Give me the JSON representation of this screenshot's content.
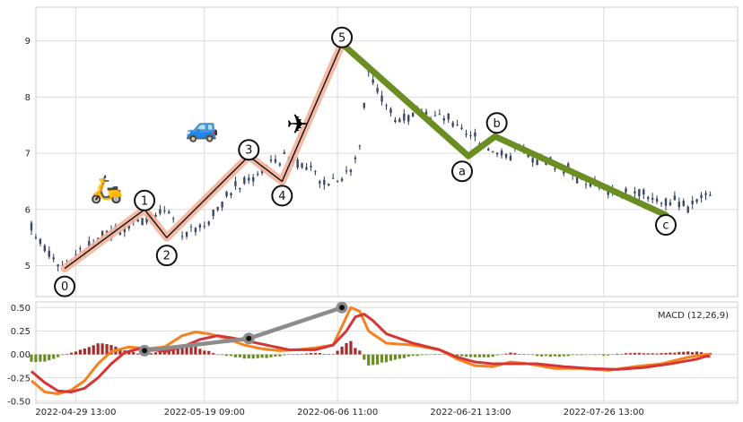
{
  "chart_data": [
    {
      "type": "candlestick",
      "title": "",
      "xlabel": "",
      "ylabel": "",
      "ylim": [
        4.45,
        9.6
      ],
      "yticks": [
        "5",
        "6",
        "7",
        "8",
        "9"
      ],
      "grid": true,
      "x_tick_labels": [
        "2022-04-29 13:00",
        "2022-05-19 09:00",
        "2022-06-06 11:00",
        "2022-06-21 13:00",
        "2022-07-26 13:00"
      ],
      "price_anchors": [
        [
          0,
          5.65
        ],
        [
          3,
          5.35
        ],
        [
          7,
          5.0
        ],
        [
          12,
          5.3
        ],
        [
          18,
          5.6
        ],
        [
          26,
          5.85
        ],
        [
          30,
          5.95
        ],
        [
          34,
          5.6
        ],
        [
          38,
          5.7
        ],
        [
          42,
          6.0
        ],
        [
          46,
          6.4
        ],
        [
          50,
          6.6
        ],
        [
          54,
          6.85
        ],
        [
          58,
          6.95
        ],
        [
          62,
          6.7
        ],
        [
          66,
          6.5
        ],
        [
          69,
          6.6
        ],
        [
          72,
          6.7
        ],
        [
          74,
          7.2
        ],
        [
          76,
          8.5
        ],
        [
          78,
          8.1
        ],
        [
          82,
          7.6
        ],
        [
          88,
          7.7
        ],
        [
          94,
          7.6
        ],
        [
          98,
          7.35
        ],
        [
          102,
          7.2
        ],
        [
          106,
          6.95
        ],
        [
          110,
          7.05
        ],
        [
          114,
          6.9
        ],
        [
          120,
          6.75
        ],
        [
          126,
          6.45
        ],
        [
          132,
          6.3
        ],
        [
          138,
          6.25
        ],
        [
          144,
          6.15
        ],
        [
          148,
          6.05
        ],
        [
          150,
          6.2
        ],
        [
          152,
          6.3
        ]
      ],
      "waves": [
        {
          "label": "0",
          "x": 7.5,
          "y": 4.95,
          "marker_dx": 0,
          "marker_dy": 20
        },
        {
          "label": "1",
          "x": 25.5,
          "y": 6.0,
          "marker_dx": 0,
          "marker_dy": -10
        },
        {
          "label": "2",
          "x": 30.5,
          "y": 5.5,
          "marker_dx": 0,
          "marker_dy": 20
        },
        {
          "label": "3",
          "x": 49,
          "y": 6.95,
          "marker_dx": 0,
          "marker_dy": -7
        },
        {
          "label": "4",
          "x": 56.5,
          "y": 6.5,
          "marker_dx": 0,
          "marker_dy": 16
        },
        {
          "label": "5",
          "x": 70,
          "y": 8.95,
          "marker_dx": 0,
          "marker_dy": -7
        },
        {
          "label": "a",
          "x": 98.5,
          "y": 6.95,
          "marker_dx": -7,
          "marker_dy": 17
        },
        {
          "label": "b",
          "x": 104.5,
          "y": 7.3,
          "marker_dx": 2,
          "marker_dy": -15
        },
        {
          "label": "c",
          "x": 143,
          "y": 5.9,
          "marker_dx": 0,
          "marker_dy": 11
        }
      ],
      "emoji_markers": [
        {
          "symbol": "🛵",
          "x": 17,
          "y": 6.2
        },
        {
          "symbol": "🚙",
          "x": 38.5,
          "y": 7.3
        },
        {
          "symbol": "✈",
          "x": 60,
          "y": 7.35
        }
      ]
    },
    {
      "type": "bar+line",
      "title": "",
      "legend_text": "MACD (12,26,9)",
      "ylim": [
        -0.52,
        0.56
      ],
      "yticks": [
        "0.50",
        "0.25",
        "0.00",
        "-0.25",
        "-0.50"
      ],
      "grid": true,
      "series": [
        {
          "name": "",
          "color": "#f5821f",
          "anchors": [
            [
              0,
              -0.28
            ],
            [
              3,
              -0.4
            ],
            [
              6,
              -0.42
            ],
            [
              9,
              -0.38
            ],
            [
              12,
              -0.28
            ],
            [
              15,
              -0.1
            ],
            [
              18,
              0.03
            ],
            [
              22,
              0.08
            ],
            [
              26,
              0.06
            ],
            [
              30,
              0.08
            ],
            [
              34,
              0.2
            ],
            [
              37,
              0.24
            ],
            [
              40,
              0.22
            ],
            [
              44,
              0.17
            ],
            [
              48,
              0.1
            ],
            [
              52,
              0.06
            ],
            [
              56,
              0.04
            ],
            [
              60,
              0.05
            ],
            [
              64,
              0.07
            ],
            [
              68,
              0.1
            ],
            [
              70,
              0.3
            ],
            [
              72,
              0.5
            ],
            [
              74,
              0.46
            ],
            [
              76,
              0.25
            ],
            [
              80,
              0.12
            ],
            [
              86,
              0.1
            ],
            [
              92,
              0.05
            ],
            [
              96,
              -0.05
            ],
            [
              100,
              -0.12
            ],
            [
              104,
              -0.13
            ],
            [
              108,
              -0.08
            ],
            [
              112,
              -0.1
            ],
            [
              118,
              -0.15
            ],
            [
              124,
              -0.15
            ],
            [
              130,
              -0.17
            ],
            [
              136,
              -0.13
            ],
            [
              142,
              -0.1
            ],
            [
              148,
              -0.03
            ],
            [
              152,
              0.0
            ]
          ]
        },
        {
          "name": "",
          "color": "#d63535",
          "anchors": [
            [
              0,
              -0.18
            ],
            [
              3,
              -0.3
            ],
            [
              6,
              -0.39
            ],
            [
              9,
              -0.4
            ],
            [
              12,
              -0.36
            ],
            [
              15,
              -0.25
            ],
            [
              18,
              -0.1
            ],
            [
              21,
              0.02
            ],
            [
              25,
              0.07
            ],
            [
              30,
              0.03
            ],
            [
              34,
              0.08
            ],
            [
              38,
              0.16
            ],
            [
              42,
              0.2
            ],
            [
              46,
              0.17
            ],
            [
              50,
              0.13
            ],
            [
              54,
              0.09
            ],
            [
              58,
              0.05
            ],
            [
              64,
              0.05
            ],
            [
              68,
              0.1
            ],
            [
              71,
              0.25
            ],
            [
              73,
              0.4
            ],
            [
              75,
              0.43
            ],
            [
              77,
              0.36
            ],
            [
              80,
              0.22
            ],
            [
              86,
              0.12
            ],
            [
              92,
              0.05
            ],
            [
              96,
              -0.03
            ],
            [
              100,
              -0.08
            ],
            [
              104,
              -0.1
            ],
            [
              108,
              -0.1
            ],
            [
              114,
              -0.1
            ],
            [
              120,
              -0.13
            ],
            [
              126,
              -0.15
            ],
            [
              132,
              -0.16
            ],
            [
              138,
              -0.14
            ],
            [
              144,
              -0.1
            ],
            [
              150,
              -0.05
            ],
            [
              152,
              -0.02
            ]
          ]
        }
      ],
      "wave_connector": {
        "points": [
          [
            25.5,
            0.04
          ],
          [
            49,
            0.17
          ],
          [
            70,
            0.5
          ]
        ],
        "color": "#8c8c8c"
      }
    }
  ]
}
